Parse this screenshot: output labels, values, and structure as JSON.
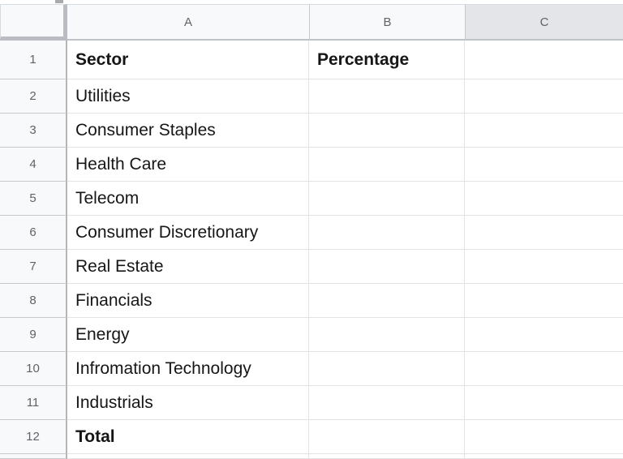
{
  "sheet": {
    "app": "spreadsheet-grid",
    "columns": [
      {
        "label": "A"
      },
      {
        "label": "B"
      },
      {
        "label": "C"
      }
    ],
    "selected_column": "C",
    "bold_rows": [
      "1",
      "12"
    ],
    "rows": [
      {
        "num": "1",
        "a": "Sector",
        "b": "Percentage",
        "c": ""
      },
      {
        "num": "2",
        "a": "Utilities",
        "b": "",
        "c": ""
      },
      {
        "num": "3",
        "a": "Consumer Staples",
        "b": "",
        "c": ""
      },
      {
        "num": "4",
        "a": "Health Care",
        "b": "",
        "c": ""
      },
      {
        "num": "5",
        "a": "Telecom",
        "b": "",
        "c": ""
      },
      {
        "num": "6",
        "a": "Consumer Discretionary",
        "b": "",
        "c": ""
      },
      {
        "num": "7",
        "a": "Real Estate",
        "b": "",
        "c": ""
      },
      {
        "num": "8",
        "a": "Financials",
        "b": "",
        "c": ""
      },
      {
        "num": "9",
        "a": "Energy",
        "b": "",
        "c": ""
      },
      {
        "num": "10",
        "a": "Infromation Technology",
        "b": "",
        "c": ""
      },
      {
        "num": "11",
        "a": "Industrials",
        "b": "",
        "c": ""
      },
      {
        "num": "12",
        "a": "Total",
        "b": "",
        "c": ""
      }
    ],
    "colors": {
      "header_bg": "#f8f9fa",
      "selected_header_bg": "#e3e5e8",
      "gridline": "#e3e3e3",
      "header_border": "#bfc3c6",
      "header_text": "#5f6368",
      "cell_text": "#161616"
    }
  }
}
